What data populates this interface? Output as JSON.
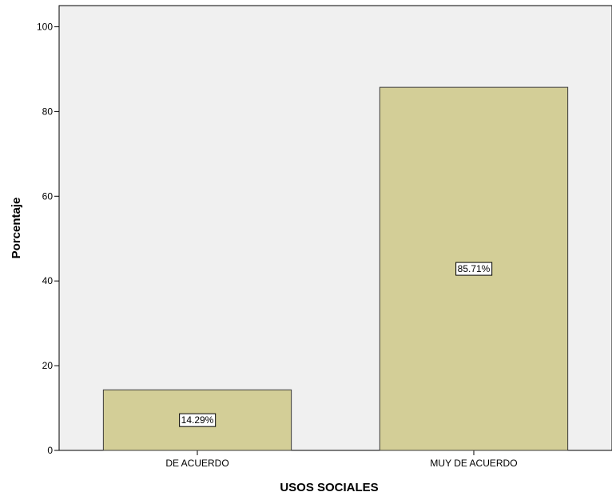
{
  "chart_data": {
    "type": "bar",
    "categories": [
      "DE ACUERDO",
      "MUY DE ACUERDO"
    ],
    "values": [
      14.29,
      85.71
    ],
    "data_labels": [
      "14.29%",
      "85.71%"
    ],
    "title": "",
    "xlabel": "USOS SOCIALES",
    "ylabel": "Porcentaje",
    "ylim": [
      0,
      105
    ],
    "yticks": [
      0,
      20,
      40,
      60,
      80,
      100
    ],
    "grid": false,
    "legend": "none"
  },
  "colors": {
    "plot_background": "#f0f0f0",
    "bar_fill": "#d3ce97",
    "bar_stroke": "#3c3c3c",
    "axis": "#000000"
  }
}
